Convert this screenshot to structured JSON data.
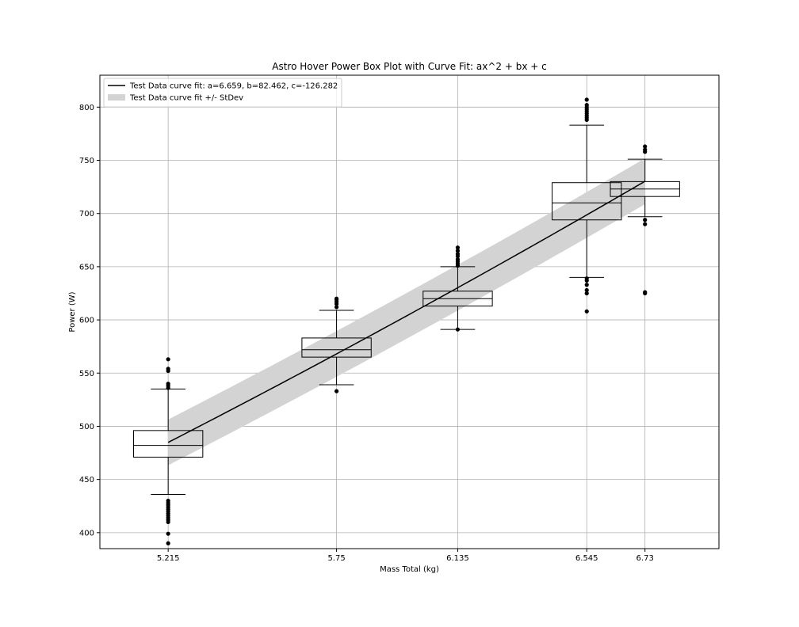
{
  "chart_data": {
    "type": "box",
    "title": "Astro Hover Power Box Plot with Curve Fit: ax^2 + bx + c",
    "xlabel": "Mass Total (kg)",
    "ylabel": "Power (W)",
    "xlim": [
      4.998,
      6.965
    ],
    "ylim": [
      385,
      830
    ],
    "grid": true,
    "x_ticks": [
      5.215,
      5.75,
      6.135,
      6.545,
      6.73
    ],
    "x_tick_labels": [
      "5.215",
      "5.75",
      "6.135",
      "6.545",
      "6.73"
    ],
    "y_ticks": [
      400,
      450,
      500,
      550,
      600,
      650,
      700,
      750,
      800
    ],
    "y_tick_labels": [
      "400",
      "450",
      "500",
      "550",
      "600",
      "650",
      "700",
      "750",
      "800"
    ],
    "box_half_width": 0.11,
    "boxes": [
      {
        "x": 5.215,
        "q1": 471,
        "median": 482,
        "q3": 496,
        "whisker_low": 436,
        "whisker_high": 535,
        "outliers": [
          390,
          399,
          410,
          412,
          414,
          416,
          418,
          420,
          422,
          424,
          426,
          428,
          430,
          536,
          538,
          540,
          552,
          554,
          563
        ]
      },
      {
        "x": 5.75,
        "q1": 565,
        "median": 572,
        "q3": 583,
        "whisker_low": 539,
        "whisker_high": 609,
        "outliers": [
          533,
          612,
          615,
          617,
          619,
          620
        ]
      },
      {
        "x": 6.135,
        "q1": 613,
        "median": 620,
        "q3": 627,
        "whisker_low": 591,
        "whisker_high": 650,
        "outliers": [
          591,
          651,
          653,
          655,
          657,
          660,
          662,
          665,
          668
        ]
      },
      {
        "x": 6.545,
        "q1": 694,
        "median": 710,
        "q3": 729,
        "whisker_low": 640,
        "whisker_high": 783,
        "outliers": [
          608,
          625,
          628,
          633,
          637,
          639,
          788,
          790,
          792,
          794,
          796,
          798,
          800,
          802,
          807
        ]
      },
      {
        "x": 6.73,
        "q1": 716,
        "median": 723,
        "q3": 730,
        "whisker_low": 697,
        "whisker_high": 751,
        "outliers": [
          625,
          626,
          690,
          694,
          758,
          760,
          763
        ]
      }
    ],
    "curve_fit": {
      "label": "Test Data curve fit: a=6.659, b=82.462, c=-126.282",
      "a": 6.659,
      "b": 82.462,
      "c": -126.282,
      "x_range": [
        5.215,
        6.73
      ],
      "color": "#000000"
    },
    "stdev_band": {
      "label": "Test Data curve fit +/- StDev",
      "stdev": 21.5,
      "color": "#d3d3d3"
    },
    "legend_position": "top-left"
  }
}
